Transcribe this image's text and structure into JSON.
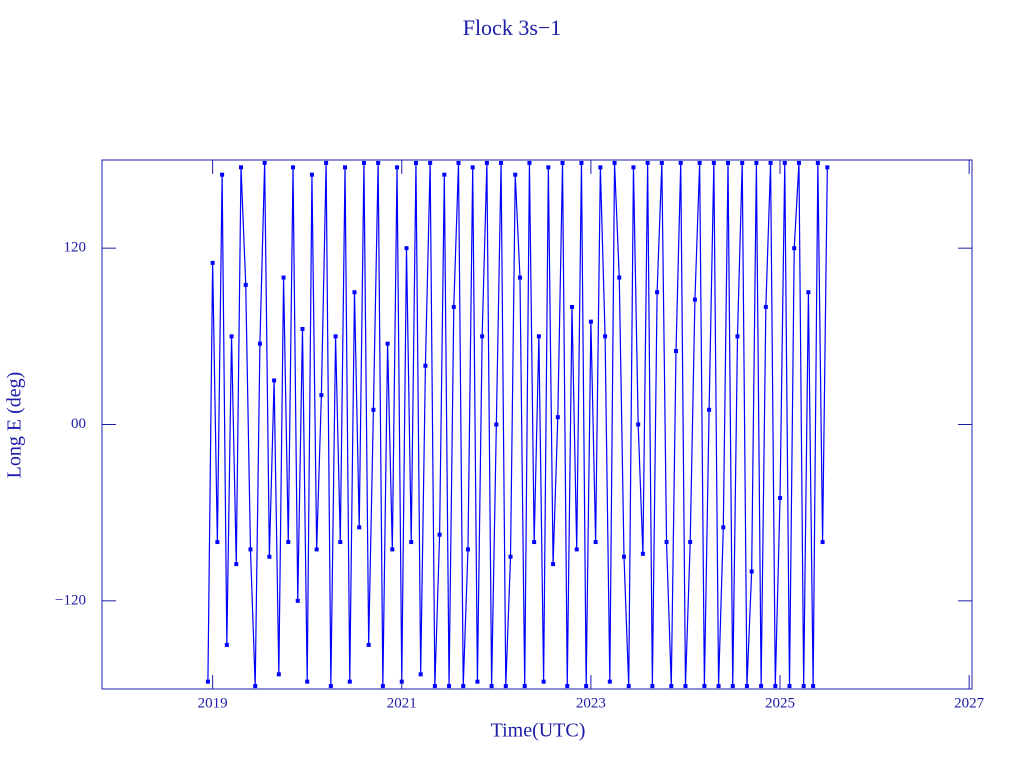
{
  "chart_data": {
    "type": "line",
    "title": "Flock 3s−1",
    "xlabel": "Time(UTC)",
    "ylabel": "Long E (deg)",
    "color": "#0000ff",
    "axis_color": "#1c1ca8",
    "xlim": [
      2017.83,
      2027.03
    ],
    "xticks": [
      2019,
      2021,
      2023,
      2025,
      2027
    ],
    "ylim": [
      -180,
      180
    ],
    "yticks": [
      {
        "value": -120,
        "label": "−120"
      },
      {
        "value": 0,
        "label": "00"
      },
      120
    ],
    "x": [
      2018.95,
      2019.0,
      2019.05,
      2019.1,
      2019.15,
      2019.2,
      2019.25,
      2019.3,
      2019.35,
      2019.4,
      2019.45,
      2019.5,
      2019.55,
      2019.6,
      2019.65,
      2019.7,
      2019.75,
      2019.8,
      2019.85,
      2019.9,
      2019.95,
      2020.0,
      2020.05,
      2020.1,
      2020.15,
      2020.2,
      2020.25,
      2020.3,
      2020.35,
      2020.4,
      2020.45,
      2020.5,
      2020.55,
      2020.6,
      2020.65,
      2020.7,
      2020.75,
      2020.8,
      2020.85,
      2020.9,
      2020.95,
      2021.0,
      2021.05,
      2021.1,
      2021.15,
      2021.2,
      2021.25,
      2021.3,
      2021.35,
      2021.4,
      2021.45,
      2021.5,
      2021.55,
      2021.6,
      2021.65,
      2021.7,
      2021.75,
      2021.8,
      2021.85,
      2021.9,
      2021.95,
      2022.0,
      2022.05,
      2022.1,
      2022.15,
      2022.2,
      2022.25,
      2022.3,
      2022.35,
      2022.4,
      2022.45,
      2022.5,
      2022.55,
      2022.6,
      2022.65,
      2022.7,
      2022.75,
      2022.8,
      2022.85,
      2022.9,
      2022.95,
      2023.0,
      2023.05,
      2023.1,
      2023.15,
      2023.2,
      2023.25,
      2023.3,
      2023.35,
      2023.4,
      2023.45,
      2023.5,
      2023.55,
      2023.6,
      2023.65,
      2023.7,
      2023.75,
      2023.8,
      2023.85,
      2023.9,
      2023.95,
      2024.0,
      2024.05,
      2024.1,
      2024.15,
      2024.2,
      2024.25,
      2024.3,
      2024.35,
      2024.4,
      2024.45,
      2024.5,
      2024.55,
      2024.6,
      2024.65,
      2024.7,
      2024.75,
      2024.8,
      2024.85,
      2024.9,
      2024.95,
      2025.0,
      2025.05,
      2025.1,
      2025.15,
      2025.2,
      2025.25,
      2025.3,
      2025.35,
      2025.4,
      2025.45,
      2025.5
    ],
    "values": [
      -175,
      110,
      -80,
      170,
      -150,
      60,
      -95,
      175,
      95,
      -85,
      -178,
      55,
      178,
      -90,
      30,
      -170,
      100,
      -80,
      175,
      -120,
      65,
      -175,
      170,
      -85,
      20,
      178,
      -178,
      60,
      -80,
      175,
      -175,
      90,
      -70,
      178,
      -150,
      10,
      178,
      -178,
      55,
      -85,
      175,
      -175,
      120,
      -80,
      178,
      -170,
      40,
      178,
      -178,
      -75,
      170,
      -178,
      80,
      178,
      -178,
      -85,
      175,
      -175,
      60,
      178,
      -178,
      0,
      178,
      -178,
      -90,
      170,
      100,
      -178,
      178,
      -80,
      60,
      -175,
      175,
      -95,
      5,
      178,
      -178,
      80,
      -85,
      178,
      -178,
      70,
      -80,
      175,
      60,
      -175,
      178,
      100,
      -90,
      -178,
      175,
      0,
      -88,
      178,
      -178,
      90,
      178,
      -80,
      -178,
      50,
      178,
      -178,
      -80,
      85,
      178,
      -178,
      10,
      178,
      -178,
      -70,
      178,
      -178,
      60,
      178,
      -178,
      -100,
      178,
      -178,
      80,
      178,
      -178,
      -50,
      178,
      -178,
      120,
      178,
      -178,
      90,
      -178,
      178,
      -80,
      175
    ]
  }
}
